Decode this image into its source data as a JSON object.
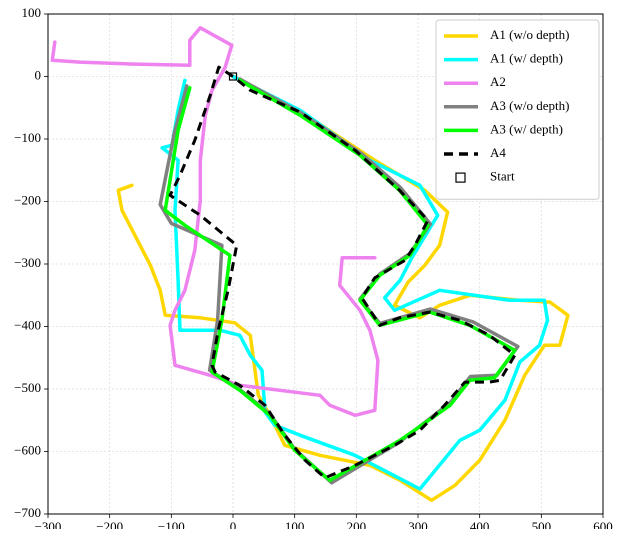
{
  "chart_data": {
    "type": "line",
    "xlim": [
      -300,
      600
    ],
    "ylim": [
      -700,
      100
    ],
    "xticks": [
      {
        "value": -300,
        "label": "−300"
      },
      {
        "value": -200,
        "label": "−200"
      },
      {
        "value": -100,
        "label": "−100"
      },
      0,
      100,
      200,
      300,
      400,
      500,
      600
    ],
    "yticks": [
      {
        "value": -700,
        "label": "−700"
      },
      {
        "value": -600,
        "label": "−600"
      },
      {
        "value": -500,
        "label": "−500"
      },
      {
        "value": -400,
        "label": "−400"
      },
      {
        "value": -300,
        "label": "−300"
      },
      {
        "value": -200,
        "label": "−200"
      },
      {
        "value": -100,
        "label": "−100"
      },
      0,
      100
    ],
    "grid": true,
    "legend": "upper right",
    "series": [
      {
        "name": "A1 (w/o depth)",
        "color": "#ffd700",
        "linestyle": "solid",
        "x": [
          -164,
          -186,
          -180,
          -159,
          -134,
          -118,
          -110,
          -53,
          3,
          28,
          41,
          60,
          84,
          141,
          222,
          271,
          322,
          360,
          400,
          441,
          473,
          505,
          530,
          543,
          514,
          465,
          384,
          335,
          303,
          262,
          284,
          311,
          335,
          348,
          311,
          230,
          125,
          19,
          0
        ],
        "values": [
          -174,
          -182,
          -214,
          -254,
          -302,
          -342,
          -382,
          -386,
          -394,
          -414,
          -510,
          -542,
          -590,
          -606,
          -622,
          -646,
          -678,
          -654,
          -614,
          -550,
          -478,
          -430,
          -430,
          -382,
          -361,
          -358,
          -350,
          -366,
          -386,
          -366,
          -329,
          -302,
          -270,
          -217,
          -182,
          -134,
          -66,
          -9,
          0
        ]
      },
      {
        "name": "A1 (w/ depth)",
        "color": "#00ffff",
        "linestyle": "solid",
        "x": [
          0,
          109,
          222,
          303,
          332,
          290,
          271,
          246,
          262,
          335,
          449,
          505,
          510,
          497,
          465,
          441,
          400,
          368,
          303,
          198,
          109,
          68,
          52,
          47,
          28,
          11,
          -21,
          -86,
          -89,
          -94,
          -89,
          -115,
          -99,
          -89,
          -78
        ],
        "values": [
          0,
          -54,
          -134,
          -174,
          -222,
          -290,
          -326,
          -354,
          -374,
          -342,
          -358,
          -358,
          -390,
          -430,
          -457,
          -518,
          -566,
          -582,
          -660,
          -606,
          -574,
          -558,
          -537,
          -470,
          -446,
          -414,
          -406,
          -406,
          -326,
          -214,
          -134,
          -114,
          -110,
          -54,
          -6
        ]
      },
      {
        "name": "A2",
        "color": "#ee82ee",
        "linestyle": "solid",
        "x": [
          -289,
          -293,
          -248,
          -167,
          -70,
          -70,
          -53,
          -2,
          -13,
          -34,
          -45,
          -53,
          -53,
          -62,
          -78,
          -94,
          -102,
          -94,
          -37,
          11,
          76,
          141,
          157,
          198,
          230,
          235,
          222,
          206,
          173,
          177,
          230
        ],
        "values": [
          55,
          26,
          23,
          20,
          18,
          58,
          78,
          50,
          14,
          -22,
          -62,
          -134,
          -198,
          -278,
          -342,
          -374,
          -398,
          -462,
          -478,
          -494,
          -502,
          -510,
          -526,
          -542,
          -534,
          -454,
          -406,
          -374,
          -334,
          -290,
          -290
        ]
      },
      {
        "name": "A3 (w/o depth)",
        "color": "#808080",
        "linestyle": "solid",
        "x": [
          -75,
          -95,
          -118,
          -100,
          -18,
          -25,
          -38,
          10,
          60,
          100,
          160,
          270,
          352,
          385,
          428,
          462,
          390,
          320,
          238,
          206,
          238,
          287,
          320,
          272,
          208,
          110,
          44,
          11
        ],
        "values": [
          -15,
          -90,
          -205,
          -235,
          -270,
          -390,
          -470,
          -500,
          -540,
          -596,
          -650,
          -585,
          -522,
          -480,
          -478,
          -432,
          -393,
          -372,
          -395,
          -356,
          -316,
          -283,
          -236,
          -178,
          -123,
          -58,
          -22,
          -4
        ]
      },
      {
        "name": "A3 (w/ depth)",
        "color": "#00ff00",
        "linestyle": "solid",
        "x": [
          -70,
          -89,
          -110,
          -78,
          -5,
          -18,
          -34,
          11,
          60,
          100,
          157,
          271,
          352,
          384,
          424,
          457,
          384,
          319,
          238,
          206,
          238,
          287,
          316,
          270,
          206,
          109,
          44,
          11
        ],
        "values": [
          -18,
          -86,
          -214,
          -238,
          -286,
          -390,
          -473,
          -502,
          -542,
          -598,
          -646,
          -582,
          -526,
          -486,
          -482,
          -438,
          -398,
          -377,
          -398,
          -358,
          -318,
          -286,
          -238,
          -182,
          -126,
          -62,
          -25,
          -6
        ]
      },
      {
        "name": "A4",
        "color": "#000000",
        "linestyle": "dashed",
        "x": [
          0,
          -23,
          -37,
          -62,
          -86,
          -102,
          -53,
          6,
          -8,
          -24,
          -34,
          -29,
          11,
          52,
          84,
          117,
          149,
          198,
          262,
          303,
          343,
          376,
          416,
          433,
          457,
          416,
          368,
          319,
          270,
          238,
          209,
          230,
          279,
          295,
          316,
          270,
          198,
          109,
          28,
          0
        ],
        "values": [
          0,
          15,
          -30,
          -102,
          -158,
          -190,
          -222,
          -270,
          -342,
          -406,
          -462,
          -473,
          -494,
          -526,
          -574,
          -614,
          -642,
          -622,
          -590,
          -566,
          -526,
          -489,
          -489,
          -486,
          -446,
          -414,
          -390,
          -377,
          -386,
          -398,
          -354,
          -322,
          -294,
          -270,
          -230,
          -182,
          -118,
          -57,
          -22,
          0
        ]
      },
      {
        "name": "Start",
        "color": "#000000",
        "marker": "square",
        "x": [
          0
        ],
        "values": [
          0
        ]
      }
    ]
  }
}
